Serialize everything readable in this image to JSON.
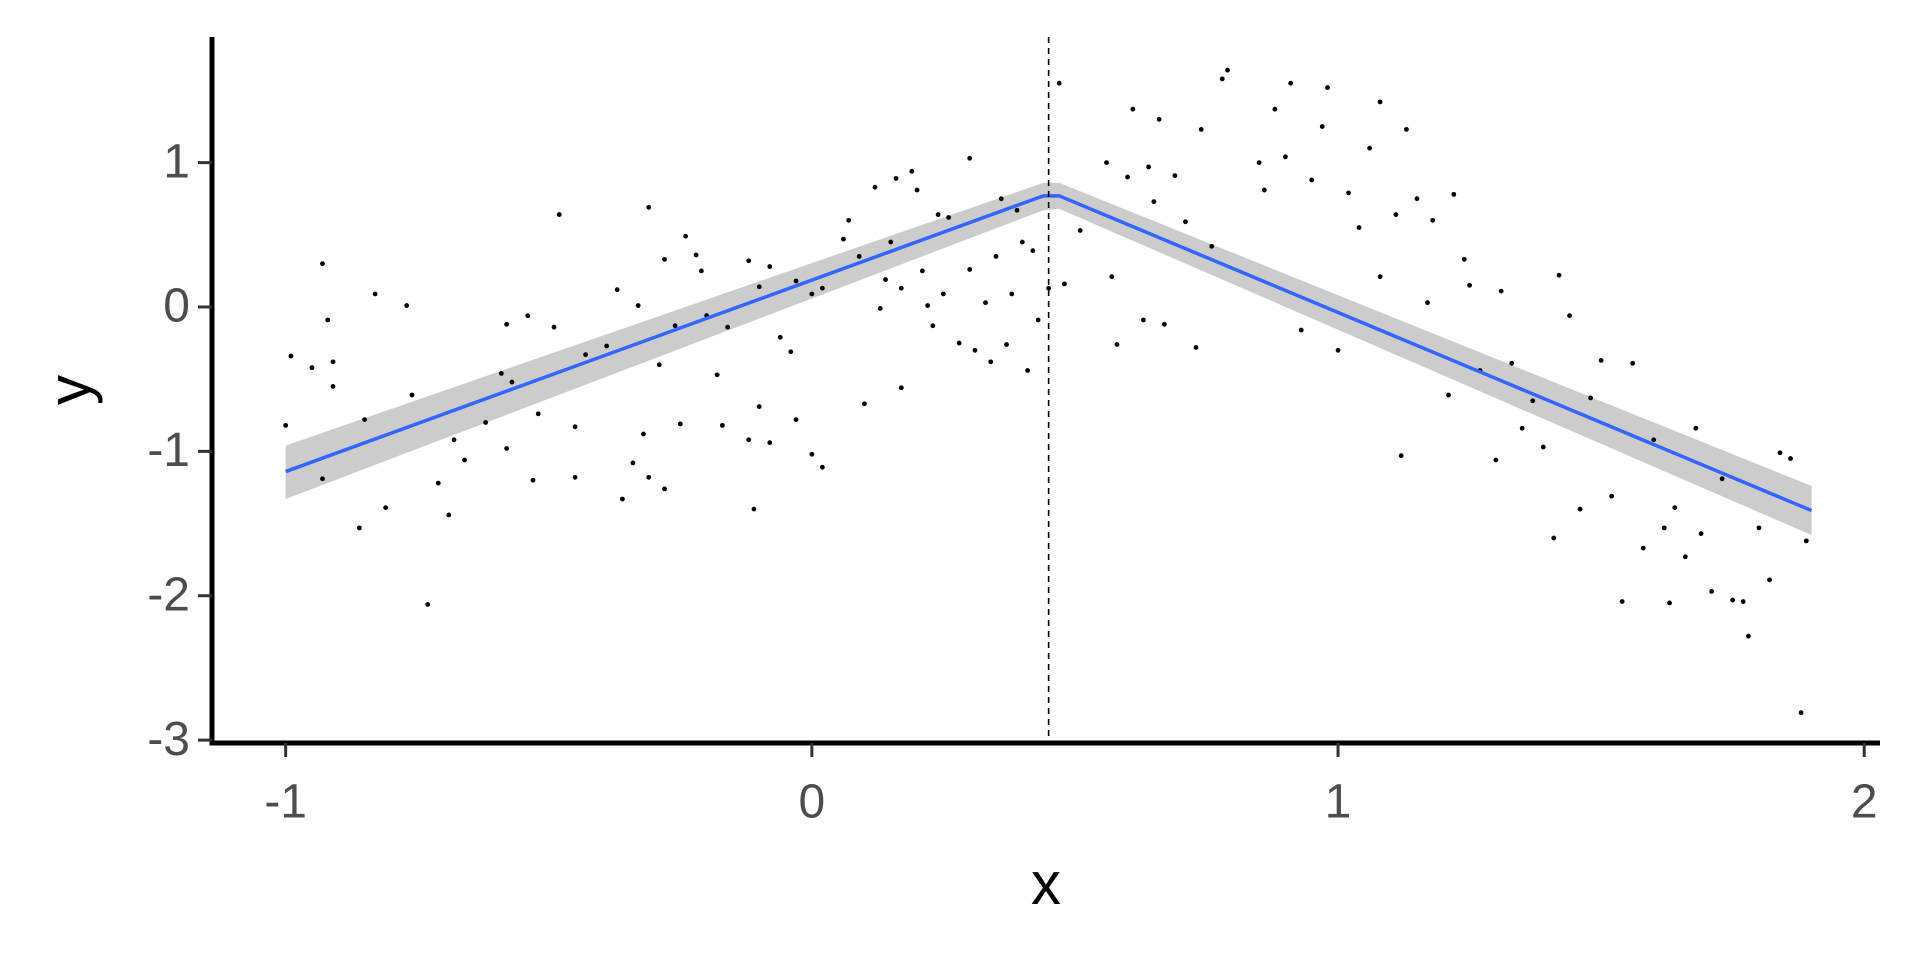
{
  "chart_data": {
    "type": "scatter",
    "xlabel": "x",
    "ylabel": "y",
    "xlim": [
      -1.14,
      2.03
    ],
    "ylim": [
      -3.02,
      1.87
    ],
    "xticks": [
      -1,
      0,
      1,
      2
    ],
    "yticks": [
      -3,
      -2,
      -1,
      0,
      1
    ],
    "color": "#000000",
    "vline": 0.45,
    "x": [
      -1.0,
      -0.99,
      -0.93,
      -0.95,
      -0.93,
      -0.92,
      -0.91,
      -0.91,
      -0.86,
      -0.85,
      -0.83,
      -0.81,
      -0.77,
      -0.76,
      -0.73,
      -0.71,
      -0.69,
      -0.68,
      -0.66,
      -0.62,
      -0.59,
      -0.58,
      -0.58,
      -0.57,
      -0.54,
      -0.53,
      -0.52,
      -0.49,
      -0.48,
      -0.45,
      -0.45,
      -0.43,
      -0.39,
      -0.37,
      -0.36,
      -0.34,
      -0.33,
      -0.32,
      -0.31,
      -0.31,
      -0.29,
      -0.28,
      -0.28,
      -0.26,
      -0.25,
      -0.24,
      -0.22,
      -0.21,
      -0.2,
      -0.18,
      -0.17,
      -0.16,
      -0.12,
      -0.12,
      -0.11,
      -0.1,
      -0.1,
      -0.08,
      -0.08,
      -0.06,
      -0.04,
      -0.03,
      -0.03,
      0.0,
      0.0,
      0.02,
      0.02,
      0.06,
      0.07,
      0.09,
      0.1,
      0.12,
      0.13,
      0.14,
      0.15,
      0.16,
      0.17,
      0.17,
      0.19,
      0.2,
      0.21,
      0.22,
      0.23,
      0.24,
      0.25,
      0.26,
      0.28,
      0.3,
      0.3,
      0.31,
      0.33,
      0.34,
      0.35,
      0.36,
      0.37,
      0.38,
      0.39,
      0.4,
      0.41,
      0.42,
      0.43,
      0.45,
      0.47,
      0.48,
      0.51,
      0.56,
      0.57,
      0.58,
      0.6,
      0.61,
      0.63,
      0.64,
      0.65,
      0.66,
      0.67,
      0.69,
      0.71,
      0.73,
      0.74,
      0.76,
      0.78,
      0.79,
      0.85,
      0.86,
      0.88,
      0.9,
      0.91,
      0.93,
      0.95,
      0.97,
      0.98,
      1.0,
      1.02,
      1.04,
      1.06,
      1.08,
      1.08,
      1.11,
      1.12,
      1.13,
      1.15,
      1.17,
      1.18,
      1.21,
      1.22,
      1.24,
      1.25,
      1.27,
      1.3,
      1.31,
      1.33,
      1.35,
      1.37,
      1.39,
      1.41,
      1.42,
      1.44,
      1.46,
      1.48,
      1.5,
      1.52,
      1.54,
      1.56,
      1.58,
      1.6,
      1.62,
      1.63,
      1.64,
      1.66,
      1.68,
      1.69,
      1.71,
      1.73,
      1.75,
      1.77,
      1.78,
      1.8,
      1.82,
      1.84,
      1.86,
      1.88,
      1.89
    ],
    "values": [
      -0.82,
      -0.34,
      0.3,
      -0.42,
      -1.19,
      -0.09,
      -0.38,
      -0.55,
      -1.53,
      -0.78,
      0.09,
      -1.39,
      0.01,
      -0.61,
      -2.06,
      -1.22,
      -1.44,
      -0.92,
      -1.06,
      -0.8,
      -0.46,
      -0.12,
      -0.98,
      -0.52,
      -0.06,
      -1.2,
      -0.74,
      -0.14,
      0.64,
      -1.18,
      -0.83,
      -0.33,
      -0.27,
      0.12,
      -1.33,
      -1.08,
      0.01,
      -0.88,
      0.69,
      -1.18,
      -0.4,
      -1.26,
      0.33,
      -0.13,
      -0.81,
      0.49,
      0.36,
      0.25,
      -0.06,
      -0.47,
      -0.82,
      -0.14,
      -0.92,
      0.32,
      -1.4,
      -0.69,
      0.14,
      0.28,
      -0.94,
      -0.21,
      -0.31,
      0.18,
      -0.78,
      0.09,
      -1.02,
      -1.11,
      0.13,
      0.47,
      0.6,
      0.35,
      -0.67,
      0.83,
      -0.01,
      0.19,
      0.45,
      0.89,
      0.13,
      -0.56,
      0.94,
      0.81,
      0.25,
      0.01,
      -0.13,
      0.64,
      0.09,
      0.62,
      -0.25,
      1.03,
      0.26,
      -0.3,
      0.03,
      -0.38,
      0.35,
      0.75,
      -0.26,
      0.09,
      0.67,
      0.45,
      -0.44,
      0.39,
      -0.09,
      0.13,
      1.55,
      0.16,
      0.53,
      1.0,
      0.21,
      -0.26,
      0.9,
      1.37,
      -0.09,
      0.97,
      0.73,
      1.3,
      -0.12,
      0.91,
      0.59,
      -0.28,
      1.23,
      0.42,
      1.58,
      1.64,
      1.0,
      0.81,
      1.37,
      1.04,
      1.55,
      -0.16,
      0.88,
      1.25,
      1.52,
      -0.3,
      0.79,
      0.55,
      1.1,
      1.42,
      0.21,
      0.64,
      -1.03,
      1.23,
      0.75,
      0.03,
      0.6,
      -0.61,
      0.78,
      0.33,
      0.15,
      -0.44,
      -1.06,
      0.11,
      -0.39,
      -0.84,
      -0.65,
      -0.97,
      -1.6,
      0.22,
      -0.06,
      -1.4,
      -0.63,
      -0.37,
      -1.31,
      -2.04,
      -0.39,
      -1.67,
      -0.92,
      -1.53,
      -2.05,
      -1.39,
      -1.73,
      -0.84,
      -1.57,
      -1.97,
      -1.19,
      -2.03,
      -2.04,
      -2.28,
      -1.53,
      -1.89,
      -1.01,
      -1.05,
      -2.81,
      -1.62
    ],
    "fit": {
      "color": "#3366ff",
      "band_color": "#cccccc",
      "x": [
        -1.0,
        0.44,
        0.47,
        1.9
      ],
      "values": [
        -1.14,
        0.77,
        0.77,
        -1.41
      ],
      "lower": [
        -1.33,
        0.67,
        0.68,
        -1.58
      ],
      "upper": [
        -0.96,
        0.86,
        0.86,
        -1.24
      ]
    }
  }
}
